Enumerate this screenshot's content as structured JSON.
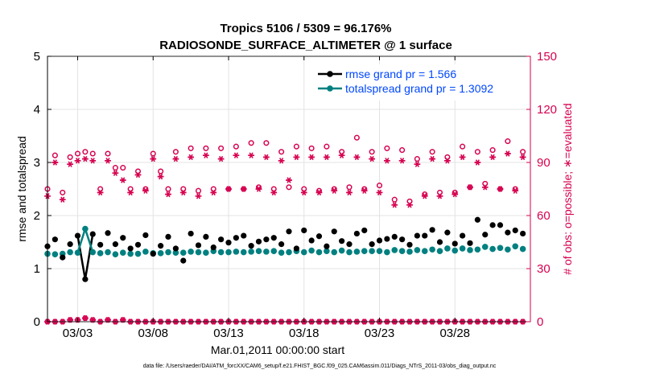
{
  "chart_data": {
    "type": "line",
    "title_line1": "Tropics 5106 / 5309 = 96.176%",
    "title_line2": "RADIOSONDE_SURFACE_ALTIMETER @ 1 surface",
    "xlabel": "Mar.01,2011 00:00:00 start",
    "ylabel_left": "rmse and totalspread",
    "ylabel_right": "# of obs: o=possible; ∗=evaluated",
    "footnote": "data file: /Users/raeder/DAI/ATM_forcXX/CAM6_setup/f.e21.FHIST_BGC.f09_025.CAM6assim.011/Diags_NTrS_2011-03/obs_diag_output.nc",
    "xlim": [
      1,
      33
    ],
    "ylim_left": [
      0,
      5
    ],
    "ylim_right": [
      0,
      150
    ],
    "x_ticks": [
      3,
      8,
      13,
      18,
      23,
      28
    ],
    "x_tick_labels": [
      "03/03",
      "03/08",
      "03/13",
      "03/18",
      "03/23",
      "03/28"
    ],
    "y_left_ticks": [
      "0",
      "1",
      "2",
      "3",
      "4",
      "5"
    ],
    "y_right_ticks": [
      "0",
      "30",
      "60",
      "90",
      "120",
      "150"
    ],
    "colors": {
      "rmse": "#000000",
      "spread": "#008080",
      "obs": "#d6004f",
      "axis_left": "#000000",
      "axis_right": "#d6004f",
      "legend_text": "#0047ff"
    },
    "legend": {
      "placement": "top-right",
      "rmse_label": "rmse grand pr = 1.566",
      "spread_label": "totalspread grand pr = 1.3092"
    },
    "x": [
      1.0,
      1.5,
      2.0,
      2.5,
      3.0,
      3.5,
      4.0,
      4.5,
      5.0,
      5.5,
      6.0,
      6.5,
      7.0,
      7.5,
      8.0,
      8.5,
      9.0,
      9.5,
      10.0,
      10.5,
      11.0,
      11.5,
      12.0,
      12.5,
      13.0,
      13.5,
      14.0,
      14.5,
      15.0,
      15.5,
      16.0,
      16.5,
      17.0,
      17.5,
      18.0,
      18.5,
      19.0,
      19.5,
      20.0,
      20.5,
      21.0,
      21.5,
      22.0,
      22.5,
      23.0,
      23.5,
      24.0,
      24.5,
      25.0,
      25.5,
      26.0,
      26.5,
      27.0,
      27.5,
      28.0,
      28.5,
      29.0,
      29.5,
      30.0,
      30.5,
      31.0,
      31.5,
      32.0,
      32.5
    ],
    "series": [
      {
        "name": "rmse",
        "values": [
          1.42,
          1.55,
          1.21,
          1.46,
          1.62,
          0.8,
          1.65,
          1.45,
          1.67,
          1.46,
          1.58,
          1.38,
          1.45,
          1.63,
          1.28,
          1.43,
          1.6,
          1.38,
          1.15,
          1.66,
          1.44,
          1.6,
          1.4,
          1.55,
          1.49,
          1.58,
          1.62,
          1.43,
          1.51,
          1.55,
          1.58,
          1.46,
          1.7,
          1.38,
          1.72,
          1.53,
          1.61,
          1.42,
          1.7,
          1.52,
          1.46,
          1.66,
          1.72,
          1.46,
          1.53,
          1.56,
          1.6,
          1.55,
          1.45,
          1.62,
          1.62,
          1.73,
          1.5,
          1.68,
          1.47,
          1.62,
          1.48,
          1.92,
          1.64,
          1.82,
          1.82,
          1.68,
          1.72,
          1.66
        ]
      },
      {
        "name": "totalspread",
        "values": [
          1.28,
          1.27,
          1.28,
          1.31,
          1.3,
          1.75,
          1.31,
          1.29,
          1.31,
          1.27,
          1.3,
          1.28,
          1.28,
          1.32,
          1.29,
          1.29,
          1.31,
          1.3,
          1.3,
          1.32,
          1.31,
          1.3,
          1.33,
          1.31,
          1.31,
          1.32,
          1.31,
          1.32,
          1.33,
          1.32,
          1.33,
          1.3,
          1.31,
          1.33,
          1.31,
          1.34,
          1.31,
          1.33,
          1.31,
          1.34,
          1.31,
          1.32,
          1.33,
          1.33,
          1.33,
          1.31,
          1.35,
          1.33,
          1.32,
          1.35,
          1.33,
          1.36,
          1.33,
          1.38,
          1.34,
          1.38,
          1.35,
          1.36,
          1.41,
          1.37,
          1.39,
          1.36,
          1.42,
          1.37
        ]
      },
      {
        "name": "obs possible",
        "values": [
          75,
          94,
          73,
          93,
          95,
          96,
          95,
          75,
          95,
          87,
          87,
          75,
          85,
          75,
          95,
          85,
          75,
          96,
          75,
          98,
          74,
          98,
          75,
          98,
          75,
          99,
          75,
          101,
          76,
          101,
          75,
          96,
          76,
          99,
          75,
          98,
          74,
          99,
          75,
          96,
          76,
          104,
          75,
          96,
          77,
          98,
          69,
          97,
          68,
          92,
          72,
          96,
          73,
          93,
          73,
          99,
          76,
          96,
          78,
          97,
          75,
          102,
          75,
          96
        ]
      },
      {
        "name": "obs evaluated",
        "values": [
          71,
          90,
          69,
          89,
          91,
          92,
          91,
          73,
          91,
          84,
          80,
          73,
          83,
          74,
          92,
          82,
          72,
          92,
          73,
          93,
          71,
          94,
          73,
          92,
          75,
          94,
          75,
          94,
          75,
          93,
          73,
          91,
          80,
          93,
          73,
          93,
          73,
          93,
          74,
          94,
          73,
          93,
          74,
          92,
          73,
          91,
          66,
          91,
          66,
          89,
          71,
          92,
          71,
          91,
          72,
          93,
          76,
          90,
          76,
          93,
          75,
          95,
          74,
          93
        ]
      },
      {
        "name": "obs possible low",
        "values": [
          0,
          0,
          0,
          1,
          1,
          2,
          1,
          0,
          1,
          0,
          1,
          0,
          0,
          0,
          0,
          0,
          0,
          0,
          0,
          0,
          0,
          0,
          0,
          0,
          0,
          0,
          0,
          0,
          0,
          0,
          0,
          0,
          0,
          0,
          0,
          0,
          0,
          0,
          0,
          0,
          0,
          0,
          0,
          0,
          0,
          0,
          0,
          0,
          0,
          0,
          0,
          0,
          0,
          0,
          0,
          0,
          0,
          0,
          0,
          0,
          0,
          0,
          0,
          0
        ]
      }
    ]
  }
}
